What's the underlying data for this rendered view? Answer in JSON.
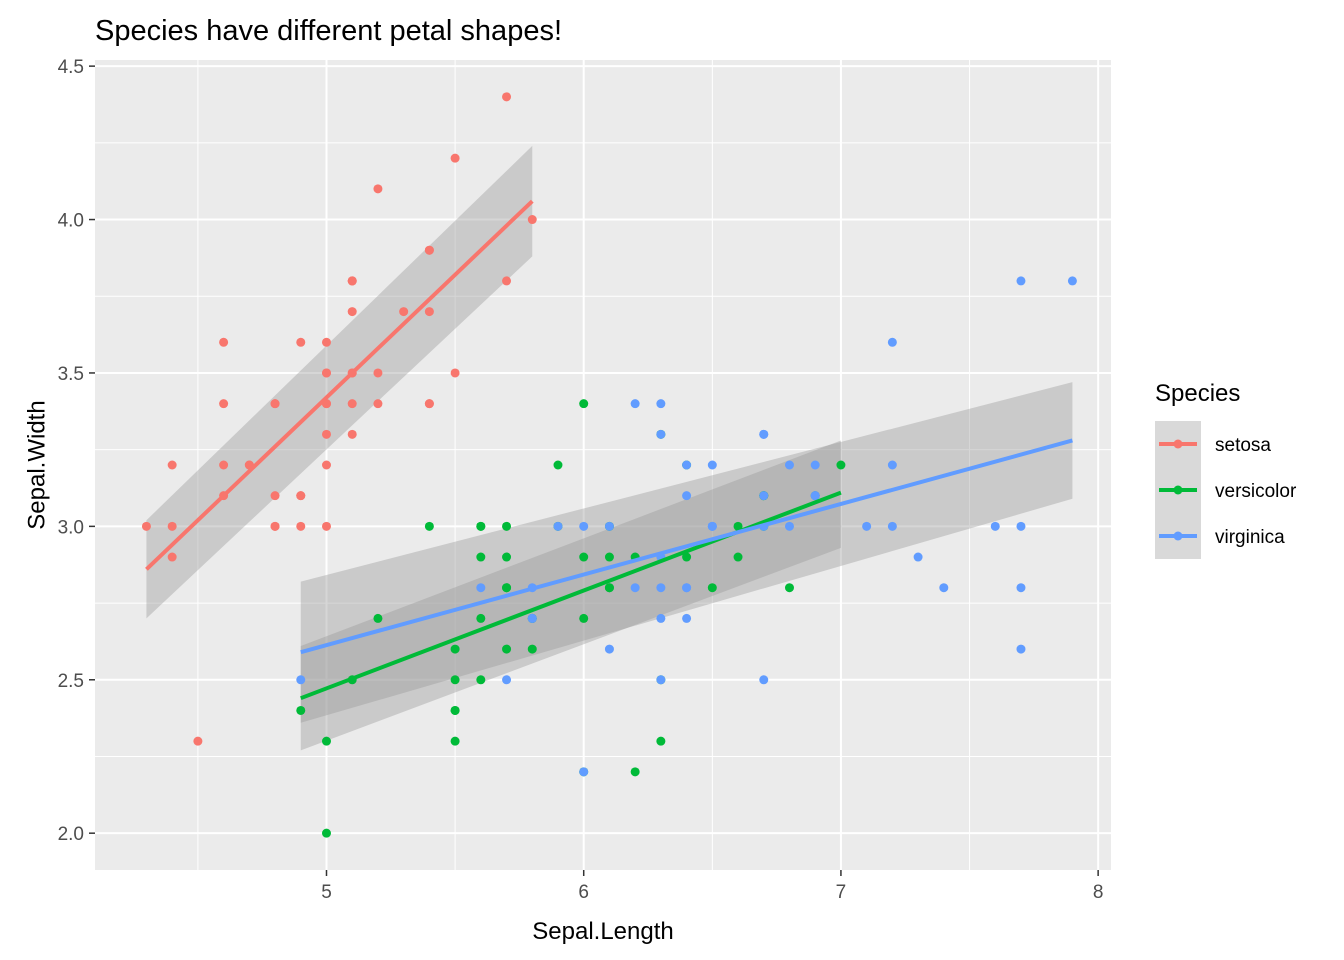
{
  "chart_data": {
    "type": "scatter",
    "title": "Species have different petal shapes!",
    "xlabel": "Sepal.Length",
    "ylabel": "Sepal.Width",
    "xlim": [
      4.1,
      8.05
    ],
    "ylim": [
      1.88,
      4.52
    ],
    "x_ticks": [
      5,
      6,
      7,
      8
    ],
    "x_tick_labels": [
      "5",
      "6",
      "7",
      "8"
    ],
    "y_ticks": [
      2.0,
      2.5,
      3.0,
      3.5,
      4.0,
      4.5
    ],
    "y_tick_labels": [
      "2.0",
      "2.5",
      "3.0",
      "3.5",
      "4.0",
      "4.5"
    ],
    "grid": true,
    "legend": {
      "title": "Species",
      "position": "right"
    },
    "series": [
      {
        "name": "setosa",
        "color": "#F8766D",
        "x": [
          5.1,
          4.9,
          4.7,
          4.6,
          5.0,
          5.4,
          4.6,
          5.0,
          4.4,
          4.9,
          5.4,
          4.8,
          4.8,
          4.3,
          5.8,
          5.7,
          5.4,
          5.1,
          5.7,
          5.1,
          5.4,
          5.1,
          4.6,
          5.1,
          4.8,
          5.0,
          5.0,
          5.2,
          5.2,
          4.7,
          4.8,
          5.4,
          5.2,
          5.5,
          4.9,
          5.0,
          5.5,
          4.9,
          4.4,
          5.1,
          5.0,
          4.5,
          4.4,
          5.0,
          5.1,
          4.8,
          5.1,
          4.6,
          5.3,
          5.0
        ],
        "y": [
          3.5,
          3.0,
          3.2,
          3.1,
          3.6,
          3.9,
          3.4,
          3.4,
          2.9,
          3.1,
          3.7,
          3.4,
          3.0,
          3.0,
          4.0,
          4.4,
          3.9,
          3.5,
          3.8,
          3.8,
          3.4,
          3.7,
          3.6,
          3.3,
          3.4,
          3.0,
          3.4,
          3.5,
          3.4,
          3.2,
          3.1,
          3.4,
          4.1,
          4.2,
          3.1,
          3.2,
          3.5,
          3.6,
          3.0,
          3.4,
          3.5,
          2.3,
          3.2,
          3.5,
          3.8,
          3.0,
          3.8,
          3.2,
          3.7,
          3.3
        ],
        "fit": {
          "x": [
            4.3,
            5.8
          ],
          "y": [
            2.86,
            4.06
          ],
          "ci_upper": [
            3.02,
            4.24
          ],
          "ci_lower": [
            2.7,
            3.88
          ]
        }
      },
      {
        "name": "versicolor",
        "color": "#00BA38",
        "x": [
          7.0,
          6.4,
          6.9,
          5.5,
          6.5,
          5.7,
          6.3,
          4.9,
          6.6,
          5.2,
          5.0,
          5.9,
          6.0,
          6.1,
          5.6,
          6.7,
          5.6,
          5.8,
          6.2,
          5.6,
          5.9,
          6.1,
          6.3,
          6.1,
          6.4,
          6.6,
          6.8,
          6.7,
          6.0,
          5.7,
          5.5,
          5.5,
          5.8,
          6.0,
          5.4,
          6.0,
          6.7,
          6.3,
          5.6,
          5.5,
          5.5,
          6.1,
          5.8,
          5.0,
          5.6,
          5.7,
          5.7,
          6.2,
          5.1,
          5.7
        ],
        "y": [
          3.2,
          3.2,
          3.1,
          2.3,
          2.8,
          2.8,
          3.3,
          2.4,
          2.9,
          2.7,
          2.0,
          3.0,
          2.2,
          2.9,
          2.9,
          3.1,
          3.0,
          2.7,
          2.2,
          2.5,
          3.2,
          2.8,
          2.5,
          2.8,
          2.9,
          3.0,
          2.8,
          3.0,
          2.9,
          2.6,
          2.4,
          2.4,
          2.7,
          2.7,
          3.0,
          3.4,
          3.1,
          2.3,
          3.0,
          2.5,
          2.6,
          3.0,
          2.6,
          2.3,
          2.7,
          3.0,
          2.9,
          2.9,
          2.5,
          2.8
        ],
        "fit": {
          "x": [
            4.9,
            7.0
          ],
          "y": [
            2.44,
            3.11
          ],
          "ci_upper": [
            2.61,
            3.28
          ],
          "ci_lower": [
            2.27,
            2.93
          ]
        }
      },
      {
        "name": "virginica",
        "color": "#619CFF",
        "x": [
          6.3,
          5.8,
          7.1,
          6.3,
          6.5,
          7.6,
          4.9,
          7.3,
          6.7,
          7.2,
          6.5,
          6.4,
          6.8,
          5.7,
          5.8,
          6.4,
          6.5,
          7.7,
          7.7,
          6.0,
          6.9,
          5.6,
          7.7,
          6.3,
          6.7,
          7.2,
          6.2,
          6.1,
          6.4,
          7.2,
          7.4,
          7.9,
          6.4,
          6.3,
          6.1,
          7.7,
          6.3,
          6.4,
          6.0,
          6.9,
          6.7,
          6.9,
          5.8,
          6.8,
          6.7,
          6.7,
          6.3,
          6.5,
          6.2,
          5.9
        ],
        "y": [
          3.3,
          2.7,
          3.0,
          2.9,
          3.0,
          3.0,
          2.5,
          2.9,
          2.5,
          3.6,
          3.2,
          2.7,
          3.0,
          2.5,
          2.8,
          3.2,
          3.0,
          3.8,
          2.6,
          2.2,
          3.2,
          2.8,
          2.8,
          2.7,
          3.3,
          3.2,
          2.8,
          3.0,
          2.8,
          3.0,
          2.8,
          3.8,
          2.8,
          2.8,
          2.6,
          3.0,
          3.4,
          3.1,
          3.0,
          3.1,
          3.1,
          3.1,
          2.7,
          3.2,
          3.3,
          3.0,
          2.5,
          3.0,
          3.4,
          3.0
        ],
        "fit": {
          "x": [
            4.9,
            7.9
          ],
          "y": [
            2.59,
            3.28
          ],
          "ci_upper": [
            2.82,
            3.47
          ],
          "ci_lower": [
            2.36,
            3.09
          ]
        }
      }
    ]
  }
}
